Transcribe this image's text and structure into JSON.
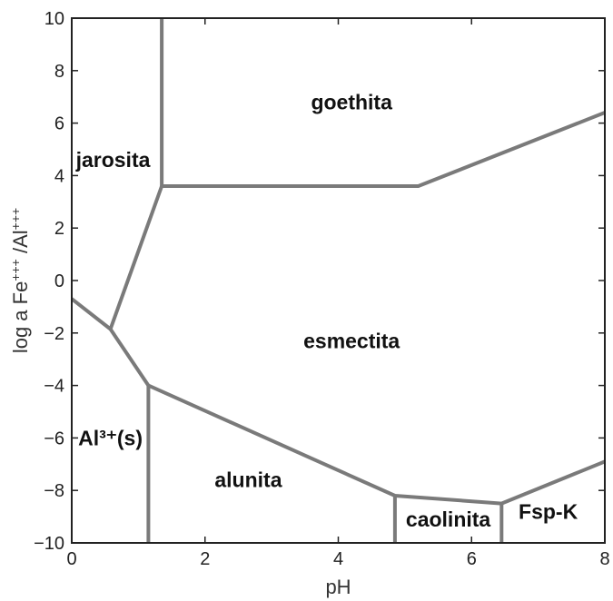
{
  "chart_data": {
    "type": "line",
    "title": "",
    "xlabel": "pH",
    "ylabel_parts": [
      "log a Fe",
      "+++",
      " /Al",
      "+++"
    ],
    "xlim": [
      0,
      8
    ],
    "ylim": [
      -10,
      10
    ],
    "x_ticks": [
      0,
      2,
      4,
      6,
      8
    ],
    "y_ticks": [
      -10,
      -8,
      -6,
      -4,
      -2,
      0,
      2,
      4,
      6,
      8,
      10
    ],
    "grid": false,
    "boundaries": [
      {
        "points": [
          [
            0,
            -0.7
          ],
          [
            0.58,
            -1.85
          ],
          [
            1.35,
            3.6
          ],
          [
            5.2,
            3.6
          ],
          [
            8,
            6.4
          ]
        ]
      },
      {
        "points": [
          [
            1.35,
            3.6
          ],
          [
            1.35,
            10
          ]
        ]
      },
      {
        "points": [
          [
            0.58,
            -1.85
          ],
          [
            1.15,
            -4.0
          ],
          [
            4.85,
            -8.2
          ],
          [
            6.45,
            -8.5
          ],
          [
            8,
            -6.9
          ]
        ]
      },
      {
        "points": [
          [
            1.15,
            -4.0
          ],
          [
            1.15,
            -10
          ]
        ]
      },
      {
        "points": [
          [
            4.85,
            -8.2
          ],
          [
            4.85,
            -10
          ]
        ]
      },
      {
        "points": [
          [
            6.45,
            -8.5
          ],
          [
            6.45,
            -10
          ]
        ]
      }
    ],
    "regions": [
      {
        "name": "goethita",
        "x": 4.2,
        "y": 6.8
      },
      {
        "name": "jarosita",
        "x": 0.62,
        "y": 4.6
      },
      {
        "name": "esmectita",
        "x": 4.2,
        "y": -2.3
      },
      {
        "name": "Al³⁺(s)",
        "x": 0.58,
        "y": -6.0
      },
      {
        "name": "alunita",
        "x": 2.65,
        "y": -7.6
      },
      {
        "name": "caolinita",
        "x": 5.65,
        "y": -9.1
      },
      {
        "name": "Fsp-K",
        "x": 7.15,
        "y": -8.8
      }
    ]
  }
}
